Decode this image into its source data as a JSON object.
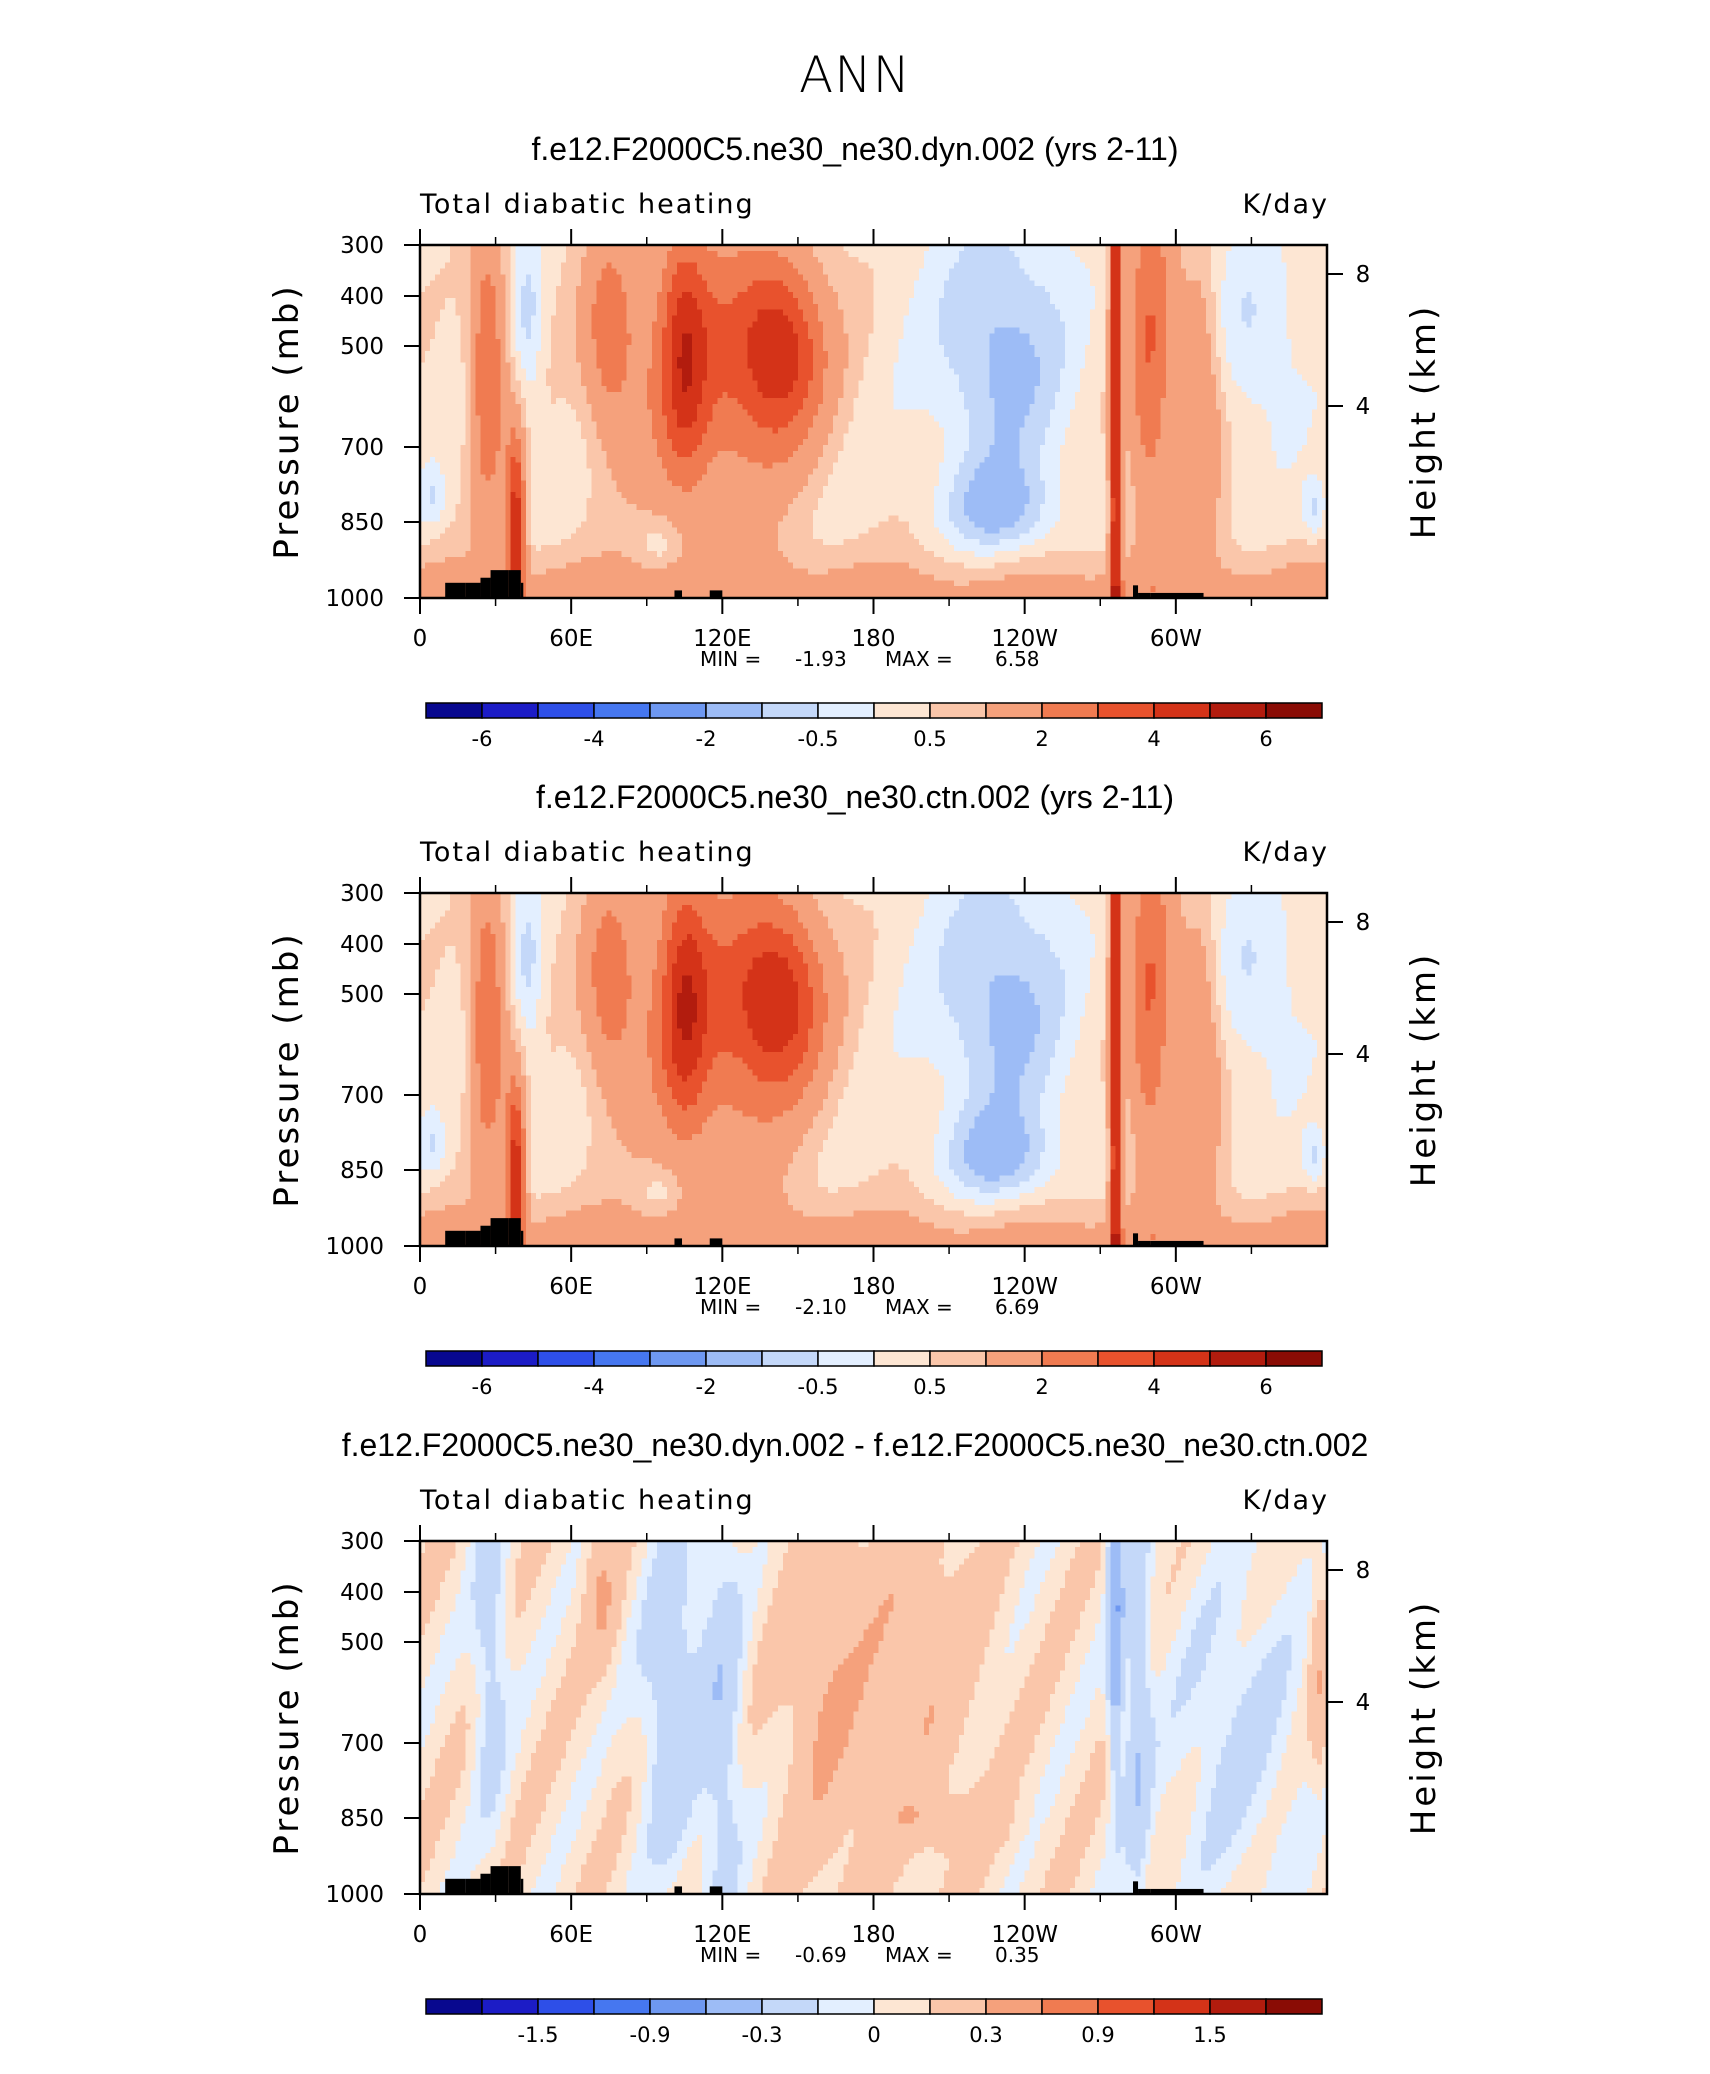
{
  "figure_title": "ANN",
  "chart_data": [
    {
      "type": "heatmap",
      "title": "f.e12.F2000C5.ne30_ne30.dyn.002 (yrs 2-11)",
      "left_string": "Total diabatic heating",
      "right_string": "K/day",
      "xlabel": "",
      "ylabel": "Pressure (mb)",
      "y2label": "Height (km)",
      "xticks": [
        "0",
        "60E",
        "120E",
        "180",
        "120W",
        "60W"
      ],
      "yticks": [
        "300",
        "400",
        "500",
        "700",
        "850",
        "1000"
      ],
      "y2ticks": [
        "8",
        "4"
      ],
      "min_label": "MIN =",
      "min_value": "-1.93",
      "max_label": "MAX =",
      "max_value": "6.58",
      "colorbar_labels": [
        "-6",
        "-4",
        "-2",
        "-0.5",
        "0.5",
        "2",
        "4",
        "6"
      ],
      "zero_value": 0.2
    },
    {
      "type": "heatmap",
      "title": "f.e12.F2000C5.ne30_ne30.ctn.002 (yrs 2-11)",
      "left_string": "Total diabatic heating",
      "right_string": "K/day",
      "xlabel": "",
      "ylabel": "Pressure (mb)",
      "y2label": "Height (km)",
      "xticks": [
        "0",
        "60E",
        "120E",
        "180",
        "120W",
        "60W"
      ],
      "yticks": [
        "300",
        "400",
        "500",
        "700",
        "850",
        "1000"
      ],
      "y2ticks": [
        "8",
        "4"
      ],
      "min_label": "MIN =",
      "min_value": "-2.10",
      "max_label": "MAX =",
      "max_value": "6.69",
      "colorbar_labels": [
        "-6",
        "-4",
        "-2",
        "-0.5",
        "0.5",
        "2",
        "4",
        "6"
      ],
      "zero_value": 0.2
    },
    {
      "type": "heatmap",
      "title": "f.e12.F2000C5.ne30_ne30.dyn.002 - f.e12.F2000C5.ne30_ne30.ctn.002",
      "left_string": "Total diabatic heating",
      "right_string": "K/day",
      "xlabel": "",
      "ylabel": "Pressure (mb)",
      "y2label": "Height (km)",
      "xticks": [
        "0",
        "60E",
        "120E",
        "180",
        "120W",
        "60W"
      ],
      "yticks": [
        "300",
        "400",
        "500",
        "700",
        "850",
        "1000"
      ],
      "y2ticks": [
        "8",
        "4"
      ],
      "min_label": "MIN =",
      "min_value": "-0.69",
      "max_label": "MAX =",
      "max_value": "0.35",
      "colorbar_labels": [
        "-1.5",
        "-0.9",
        "-0.3",
        "0",
        "0.3",
        "0.9",
        "1.5"
      ],
      "zero_value": 0.0
    }
  ],
  "colorbar_colors": [
    "#08088f",
    "#1c1cc6",
    "#2e4fe8",
    "#4677f0",
    "#6e98f1",
    "#9dbcf6",
    "#c4d8f9",
    "#e3efff",
    "#fde6d3",
    "#fac6aa",
    "#f5a17c",
    "#f07b51",
    "#e8522d",
    "#d43318",
    "#b21c0e",
    "#8a0c05"
  ],
  "colors": {
    "topography": "#000000",
    "axis": "#000000"
  }
}
